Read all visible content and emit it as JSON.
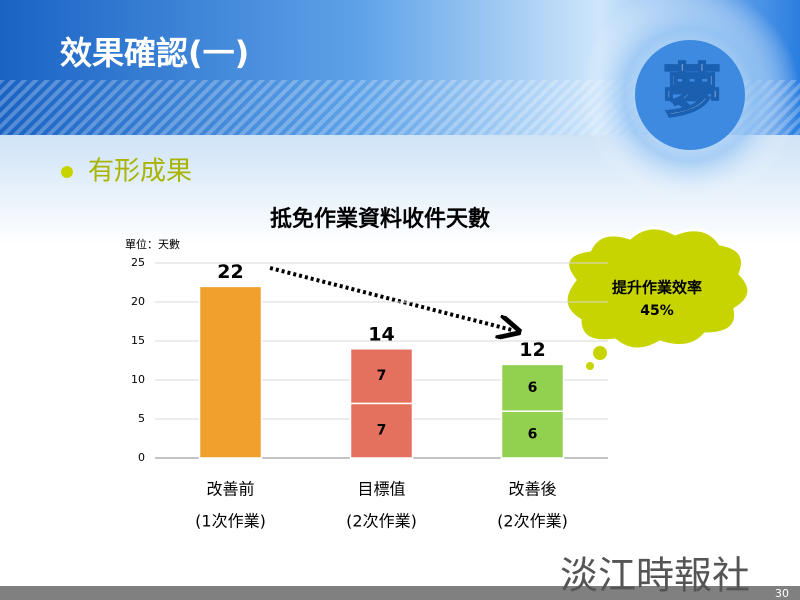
{
  "slide": {
    "title": "效果確認(一)",
    "logo": "夢",
    "bullet": "有形成果",
    "footer": "淡江時報社",
    "page_number": "30"
  },
  "chart_data": {
    "type": "stacked-bar",
    "title": "抵免作業資料收件天數",
    "y_label": "單位：天數",
    "categories": [
      "改善前",
      "目標值",
      "改善後"
    ],
    "category_notes": [
      "(1次作業)",
      "(2次作業)",
      "(2次作業)"
    ],
    "colors": [
      "#f0a02c",
      "#e4705e",
      "#92d050"
    ],
    "series": [
      {
        "values": [
          22,
          7,
          6
        ]
      },
      {
        "values": [
          null,
          7,
          6
        ]
      }
    ],
    "totals": [
      22,
      14,
      12
    ],
    "annotation": [
      "提升作業效率",
      "45%"
    ],
    "ylim": [
      0,
      25
    ],
    "yticks": [
      0,
      5,
      10,
      15,
      20,
      25
    ],
    "grid": true
  }
}
